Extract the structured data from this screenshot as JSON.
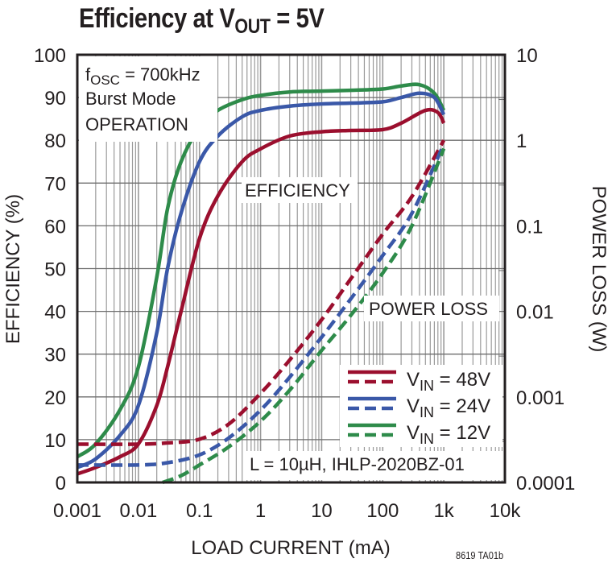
{
  "title": {
    "main": "Efficiency at V",
    "sub": "OUT",
    "tail": " = 5V"
  },
  "figure_code": "8619 TA01b",
  "annotations": {
    "conditions": {
      "line1_f": "f",
      "line1_sub": "OSC",
      "line1_rest": " = 700kHz",
      "line2": "Burst Mode",
      "line3": "OPERATION"
    },
    "efficiency_label": "EFFICIENCY",
    "power_loss_label": "POWER LOSS",
    "inductor": "L = 10µH, IHLP-2020BZ-01"
  },
  "colors": {
    "vin48": "#9b0f2e",
    "vin24": "#3a58a8",
    "vin12": "#2e8b4a",
    "grid": "#9a9a9a",
    "frame": "#231f20"
  },
  "chart_data": {
    "type": "line",
    "title": "Efficiency at VOUT = 5V",
    "xlabel": "LOAD CURRENT (mA)",
    "ylabel": "EFFICIENCY (%)",
    "y2label": "POWER LOSS (W)",
    "xscale": "log",
    "xlim": [
      0.001,
      10000
    ],
    "ylim": [
      0,
      100
    ],
    "y2scale": "log",
    "y2lim": [
      0.0001,
      10
    ],
    "grid": true,
    "x_ticks": [
      "0.001",
      "0.01",
      "0.1",
      "1",
      "10",
      "100",
      "1k",
      "10k"
    ],
    "y_ticks": [
      "0",
      "10",
      "20",
      "30",
      "40",
      "50",
      "60",
      "70",
      "80",
      "90",
      "100"
    ],
    "y2_ticks": [
      "0.0001",
      "0.001",
      "0.01",
      "0.1",
      "1",
      "10"
    ],
    "legend": [
      {
        "label_pre": "V",
        "label_sub": "IN",
        "label_post": " = 48V",
        "color": "#9b0f2e"
      },
      {
        "label_pre": "V",
        "label_sub": "IN",
        "label_post": " = 24V",
        "color": "#3a58a8"
      },
      {
        "label_pre": "V",
        "label_sub": "IN",
        "label_post": " = 12V",
        "color": "#2e8b4a"
      }
    ],
    "legend_position": "lower right",
    "series": [
      {
        "name": "Efficiency VIN=12V",
        "axis": "left",
        "style": "solid",
        "color": "#2e8b4a",
        "x": [
          0.001,
          0.002,
          0.005,
          0.01,
          0.02,
          0.03,
          0.05,
          0.1,
          0.2,
          0.5,
          1,
          3,
          10,
          30,
          100,
          200,
          400,
          700,
          1000
        ],
        "y": [
          6,
          9,
          17,
          27,
          48,
          64,
          75,
          83,
          87,
          89.5,
          90.5,
          91.3,
          91.5,
          91.7,
          92,
          92.7,
          93,
          91,
          87
        ]
      },
      {
        "name": "Efficiency VIN=24V",
        "axis": "left",
        "style": "solid",
        "color": "#3a58a8",
        "x": [
          0.001,
          0.002,
          0.005,
          0.01,
          0.02,
          0.03,
          0.05,
          0.1,
          0.2,
          0.5,
          1,
          3,
          10,
          30,
          100,
          200,
          400,
          700,
          1000
        ],
        "y": [
          3.5,
          5.5,
          11,
          18,
          35,
          50,
          63,
          75,
          81,
          85.5,
          87,
          88,
          88.5,
          88.7,
          89,
          90,
          91,
          90,
          86
        ]
      },
      {
        "name": "Efficiency VIN=48V",
        "axis": "left",
        "style": "solid",
        "color": "#9b0f2e",
        "x": [
          0.001,
          0.002,
          0.005,
          0.01,
          0.02,
          0.03,
          0.05,
          0.1,
          0.2,
          0.5,
          1,
          3,
          10,
          30,
          100,
          200,
          500,
          800,
          1000
        ],
        "y": [
          2,
          3.5,
          6,
          9,
          18,
          27,
          40,
          57,
          67,
          75,
          78,
          81,
          82,
          82.3,
          82.5,
          84,
          87,
          86.5,
          84
        ]
      },
      {
        "name": "Power Loss VIN=48V",
        "axis": "right",
        "style": "dashed",
        "color": "#9b0f2e",
        "x": [
          0.001,
          0.01,
          0.03,
          0.1,
          0.3,
          1,
          3,
          10,
          30,
          100,
          300,
          1000
        ],
        "y": [
          0.00028,
          0.00028,
          0.00029,
          0.00032,
          0.00048,
          0.0011,
          0.0027,
          0.008,
          0.024,
          0.08,
          0.22,
          1.0
        ]
      },
      {
        "name": "Power Loss VIN=24V",
        "axis": "right",
        "style": "dashed",
        "color": "#3a58a8",
        "x": [
          0.001,
          0.01,
          0.03,
          0.1,
          0.3,
          1,
          3,
          10,
          30,
          100,
          300,
          1000
        ],
        "y": [
          0.00016,
          0.00016,
          0.00017,
          0.00021,
          0.00033,
          0.0007,
          0.0017,
          0.005,
          0.014,
          0.045,
          0.14,
          0.9
        ]
      },
      {
        "name": "Power Loss VIN=12V",
        "axis": "right",
        "style": "dashed",
        "color": "#2e8b4a",
        "x": [
          0.025,
          0.05,
          0.1,
          0.3,
          1,
          3,
          10,
          30,
          100,
          300,
          1000
        ],
        "y": [
          0.0001,
          0.00012,
          0.00016,
          0.00026,
          0.00052,
          0.0012,
          0.0035,
          0.009,
          0.028,
          0.1,
          0.8
        ]
      }
    ]
  }
}
